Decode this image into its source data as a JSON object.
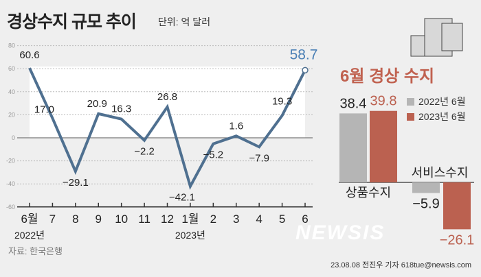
{
  "title": "경상수지 규모 추이",
  "unit": "단위: 억 달러",
  "source": "자료: 한국은행",
  "credit": "23.08.08 전진우 기자 618tue@newsis.com",
  "watermark": "NEWSIS",
  "colors": {
    "line": "#4f7090",
    "gray": "#b5b5b5",
    "red": "#bb6150",
    "highlight": "#4a7fb5"
  },
  "chart_data": [
    {
      "type": "line",
      "categories": [
        "6월",
        "7",
        "8",
        "9",
        "10",
        "11",
        "12",
        "1월",
        "2",
        "3",
        "4",
        "5",
        "6"
      ],
      "year_labels": {
        "0": "2022년",
        "7": "2023년"
      },
      "values": [
        60.6,
        17.0,
        -29.1,
        20.9,
        16.3,
        -2.2,
        26.8,
        -42.1,
        -5.2,
        1.6,
        -7.9,
        19.3,
        58.7
      ],
      "labels": [
        "60.6",
        "17.0",
        "−29.1",
        "20.9",
        "16.3",
        "−2.2",
        "26.8",
        "−42.1",
        "−5.2",
        "1.6",
        "−7.9",
        "19.3",
        "58.7"
      ],
      "ylim": [
        -60,
        80
      ],
      "yticks": [
        "80",
        "60",
        "40",
        "20",
        "0",
        "-20",
        "-40",
        "-60"
      ],
      "grid": true
    },
    {
      "type": "bar",
      "title": "6월 경상 수지",
      "categories": [
        "상품수지",
        "서비스수지"
      ],
      "series": [
        {
          "name": "2022년 6월",
          "values": [
            38.4,
            -5.9
          ],
          "labels": [
            "38.4",
            "−5.9"
          ]
        },
        {
          "name": "2023년 6월",
          "values": [
            39.8,
            -26.1
          ],
          "labels": [
            "39.8",
            "−26.1"
          ]
        }
      ],
      "legend": "right"
    }
  ]
}
